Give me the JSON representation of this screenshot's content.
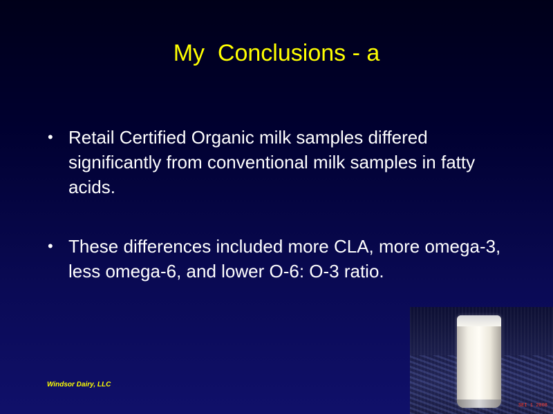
{
  "slide": {
    "title": "My  Conclusions - a",
    "bullet_marker": "•",
    "bullets": [
      {
        "text": "Retail Certified Organic milk samples differed significantly from conventional milk samples in fatty acids."
      },
      {
        "text": "These differences included more CLA, more omega-3, less omega-6, and lower O-6: O-3 ratio."
      }
    ],
    "footer": "Windsor Dairy, LLC",
    "photo": {
      "subject": "glass-of-milk",
      "stamp": "SEI  1 2008"
    }
  },
  "colors": {
    "background_top": "#000019",
    "background_bottom": "#10106a",
    "title": "#ffff00",
    "body_text": "#ffffff",
    "footer": "#ffff00"
  }
}
